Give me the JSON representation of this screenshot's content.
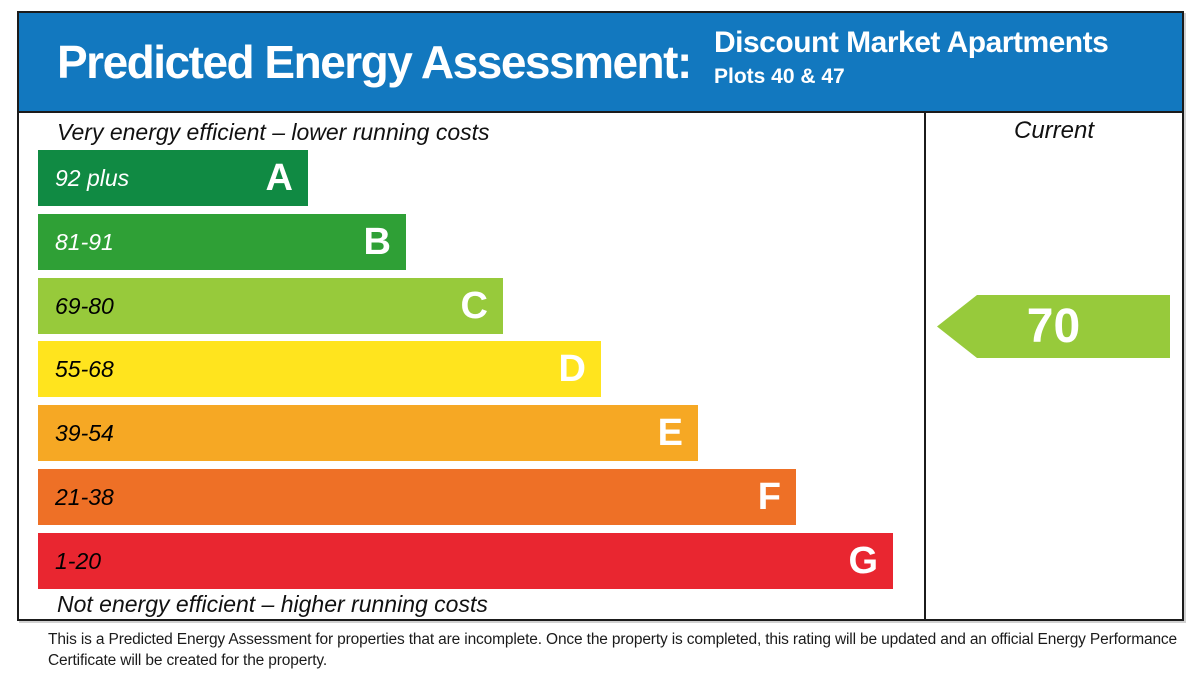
{
  "header": {
    "title": "Predicted Energy Assessment:",
    "property_name": "Discount Market Apartments",
    "property_plots": "Plots 40 & 47",
    "background_color": "#1278bf"
  },
  "chart_data": {
    "type": "bar",
    "title": "Predicted Energy Assessment",
    "top_caption": "Very energy efficient – lower running costs",
    "bottom_caption": "Not energy efficient – higher running costs",
    "bands": [
      {
        "grade": "A",
        "range": "92 plus",
        "color": "#108a43",
        "label_color": "#ffffff"
      },
      {
        "grade": "B",
        "range": "81-91",
        "color": "#2fa036",
        "label_color": "#ffffff"
      },
      {
        "grade": "C",
        "range": "69-80",
        "color": "#97ca3b",
        "label_color": "#000000"
      },
      {
        "grade": "D",
        "range": "55-68",
        "color": "#ffe41e",
        "label_color": "#000000"
      },
      {
        "grade": "E",
        "range": "39-54",
        "color": "#f6a824",
        "label_color": "#000000"
      },
      {
        "grade": "F",
        "range": "21-38",
        "color": "#ee7026",
        "label_color": "#000000"
      },
      {
        "grade": "G",
        "range": "1-20",
        "color": "#e92630",
        "label_color": "#000000"
      }
    ],
    "current": {
      "label": "Current",
      "value": 70,
      "color": "#97ca3b"
    }
  },
  "footer": {
    "line1": "This is a Predicted Energy Assessment for properties that are incomplete. Once the property is completed, this rating will be updated and an official Energy Performance",
    "line2": "Certificate will be created for the property."
  }
}
